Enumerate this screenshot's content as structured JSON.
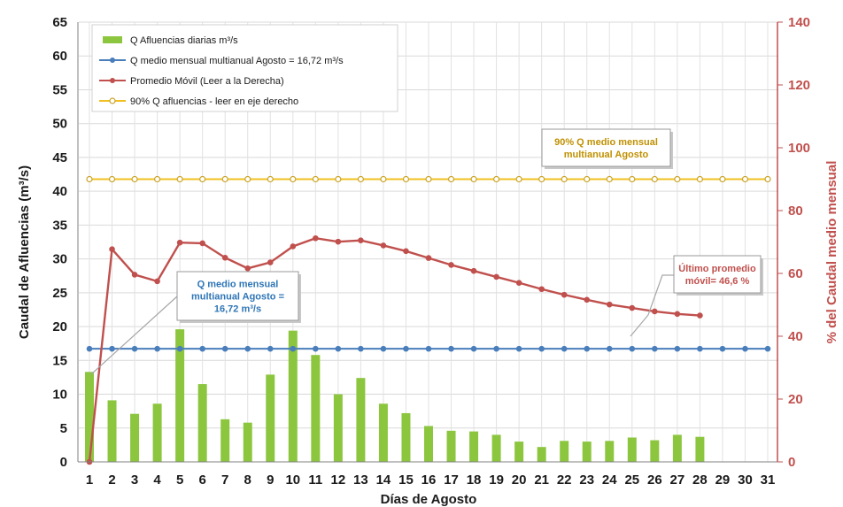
{
  "chart_data": {
    "type": "bar",
    "title": "",
    "xlabel": "Días de  Agosto",
    "ylabel": "Caudal de  Afluencias (m³/s)",
    "y2label": "% del Caudal medio mensual",
    "x": [
      1,
      2,
      3,
      4,
      5,
      6,
      7,
      8,
      9,
      10,
      11,
      12,
      13,
      14,
      15,
      16,
      17,
      18,
      19,
      20,
      21,
      22,
      23,
      24,
      25,
      26,
      27,
      28,
      29,
      30,
      31
    ],
    "ylim": [
      0,
      65
    ],
    "y2lim": [
      0,
      140
    ],
    "grid": true,
    "legend_position": "top-left",
    "series": [
      {
        "name": "Q Afluencias diarias m³/s",
        "type": "bar",
        "axis": "left",
        "color": "#8cc63f",
        "values": [
          13.3,
          9.1,
          7.1,
          8.6,
          19.6,
          11.5,
          6.3,
          5.8,
          12.9,
          19.4,
          15.8,
          10.0,
          12.4,
          8.6,
          7.2,
          5.3,
          4.6,
          4.5,
          4.0,
          3.0,
          2.2,
          3.1,
          3.0,
          3.1,
          3.6,
          3.2,
          4.0,
          3.7,
          null,
          null,
          null
        ]
      },
      {
        "name": "Q medio mensual multianual Agosto = 16,72  m³/s",
        "type": "line",
        "axis": "left",
        "color": "#4a7ebb",
        "values": [
          16.72,
          16.72,
          16.72,
          16.72,
          16.72,
          16.72,
          16.72,
          16.72,
          16.72,
          16.72,
          16.72,
          16.72,
          16.72,
          16.72,
          16.72,
          16.72,
          16.72,
          16.72,
          16.72,
          16.72,
          16.72,
          16.72,
          16.72,
          16.72,
          16.72,
          16.72,
          16.72,
          16.72,
          16.72,
          16.72,
          16.72
        ]
      },
      {
        "name": "Promedio Móvil (Leer a la Derecha)",
        "type": "line",
        "axis": "right",
        "color": "#c0504d",
        "values": [
          0,
          67.7,
          59.6,
          57.5,
          69.8,
          69.6,
          65.0,
          61.6,
          63.5,
          68.6,
          71.2,
          70.1,
          70.5,
          68.9,
          67.1,
          64.9,
          62.7,
          60.8,
          58.9,
          57.0,
          55.0,
          53.2,
          51.6,
          50.1,
          49.0,
          47.9,
          47.1,
          46.6,
          null,
          null,
          null
        ]
      },
      {
        "name": "90% Q afluencias - leer en eje derecho",
        "type": "line",
        "axis": "right",
        "color": "#f0c020",
        "values": [
          90,
          90,
          90,
          90,
          90,
          90,
          90,
          90,
          90,
          90,
          90,
          90,
          90,
          90,
          90,
          90,
          90,
          90,
          90,
          90,
          90,
          90,
          90,
          90,
          90,
          90,
          90,
          90,
          90,
          90,
          90
        ]
      }
    ],
    "annotations": [
      {
        "text": [
          "Q medio mensual",
          "multianual Agosto =",
          "16,72  m³/s"
        ],
        "color": "#2e75b6"
      },
      {
        "text": [
          "90% Q medio mensual",
          "multianual Agosto"
        ],
        "color": "#c09000"
      },
      {
        "text": [
          "Último promedio",
          "móvil= 46,6 %"
        ],
        "color": "#c0504d"
      }
    ]
  }
}
